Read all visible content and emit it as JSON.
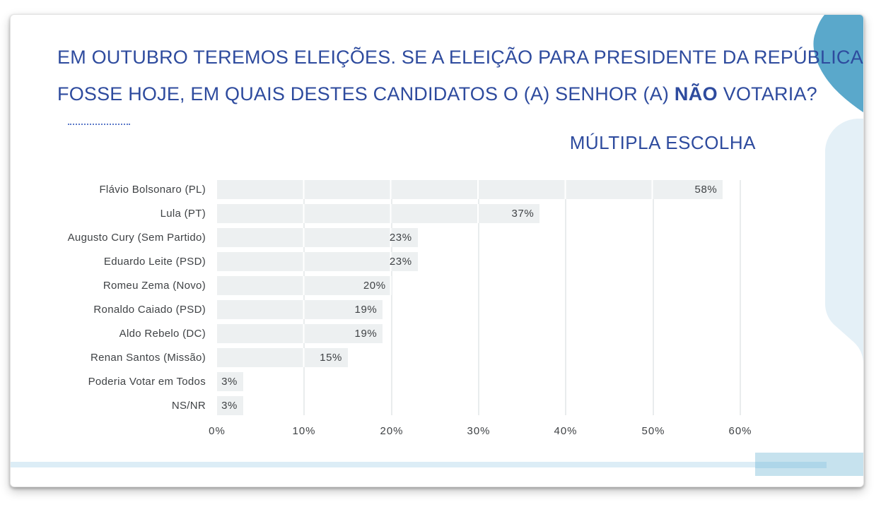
{
  "slide": {
    "title": {
      "line1": "EM OUTUBRO TEREMOS ELEIÇÕES. SE A ELEIÇÃO PARA PRESIDENTE DA REPÚBLICA",
      "line2_prefix": "FOSSE HOJE, EM QUAIS DESTES CANDIDATOS O (A) SENHOR (A) ",
      "line2_bold": "NÃO",
      "line2_suffix": " VOTARIA?"
    },
    "subtitle": "MÚLTIPLA ESCOLHA"
  },
  "chart_data": {
    "type": "bar",
    "orientation": "horizontal",
    "title": "EM OUTUBRO TEREMOS ELEIÇÕES. SE A ELEIÇÃO PARA PRESIDENTE DA REPÚBLICA FOSSE HOJE, EM QUAIS DESTES CANDIDATOS O (A) SENHOR (A) NÃO VOTARIA?",
    "subtitle": "MÚLTIPLA ESCOLHA",
    "categories": [
      "Flávio Bolsonaro (PL)",
      "Lula (PT)",
      "Augusto Cury (Sem Partido)",
      "Eduardo Leite (PSD)",
      "Romeu Zema (Novo)",
      "Ronaldo Caiado (PSD)",
      "Aldo Rebelo (DC)",
      "Renan Santos (Missão)",
      "Poderia Votar em Todos",
      "NS/NR"
    ],
    "values": [
      58,
      37,
      23,
      23,
      20,
      19,
      19,
      15,
      3,
      3
    ],
    "value_labels": [
      "58%",
      "37%",
      "23%",
      "23%",
      "20%",
      "19%",
      "19%",
      "15%",
      "3%",
      "3%"
    ],
    "x_ticks": [
      "0%",
      "10%",
      "20%",
      "30%",
      "40%",
      "50%",
      "60%"
    ],
    "xlim": [
      0,
      60
    ],
    "grid": true,
    "legend": false,
    "value_labels_position": "inside-end"
  },
  "colors": {
    "title_blue": "#2e4b9e",
    "text_gray": "#3f4245",
    "bar_fill": "#edf0f1",
    "gridline": "#e9eced",
    "shape_blue": "#5aa8cb",
    "shape_light_blue": "#e4f0f7",
    "strip_light": "#dcedf6",
    "strip_medium": "#c6e2ee",
    "strip_dark": "#aed6e9"
  }
}
